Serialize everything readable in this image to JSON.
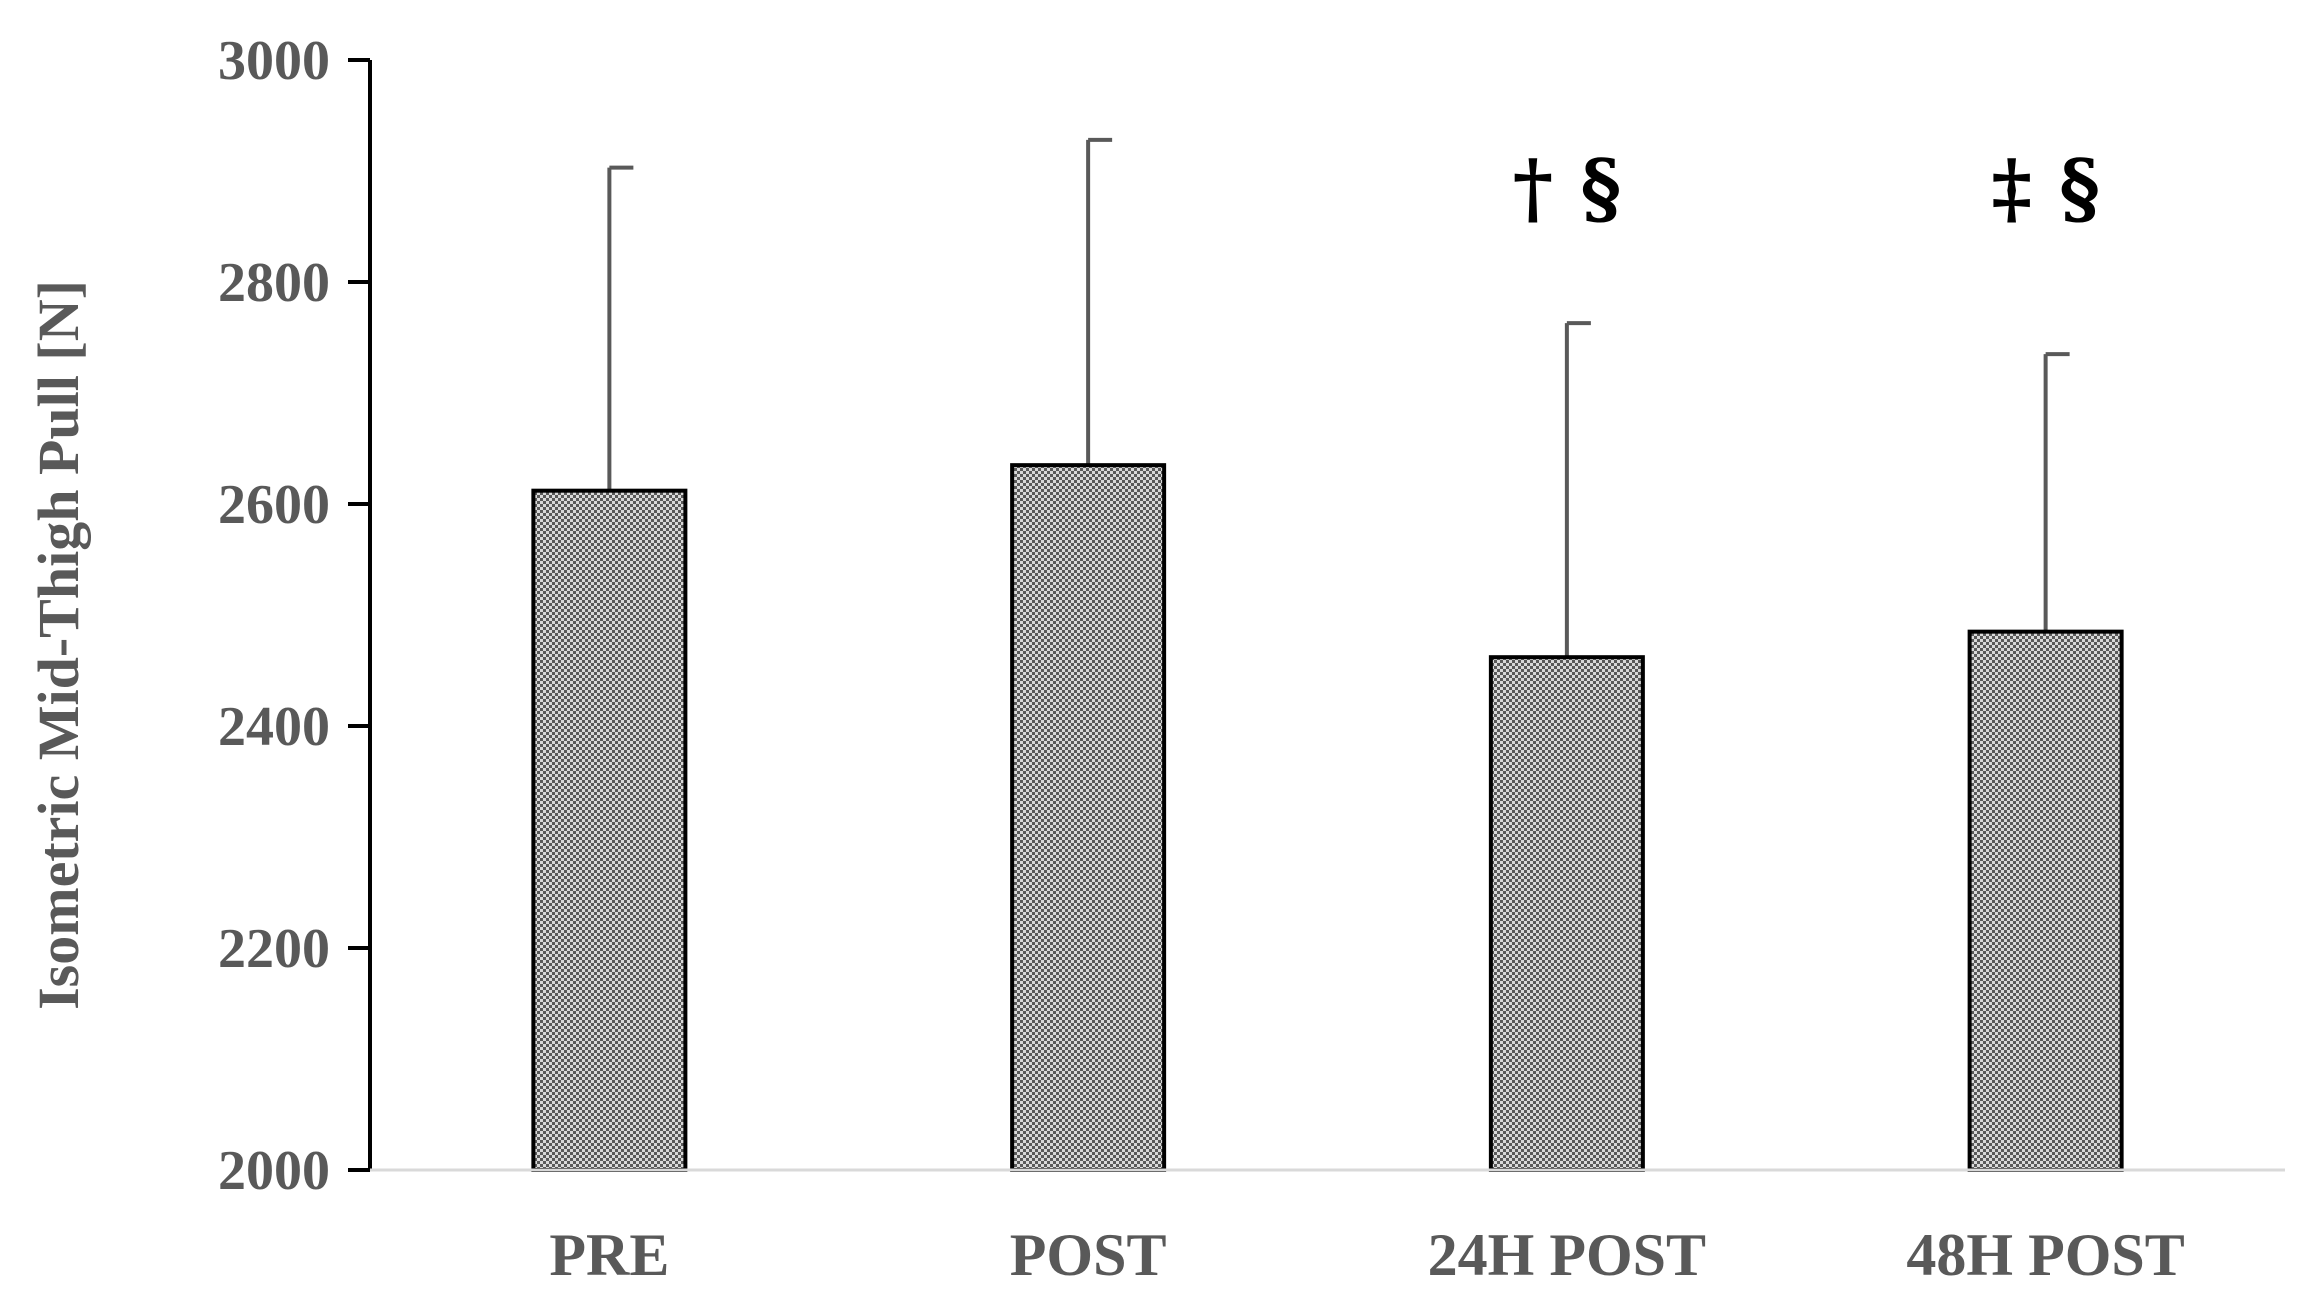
{
  "chart_data": {
    "type": "bar",
    "title": "",
    "xlabel": "",
    "ylabel": "Isometric Mid-Thigh Pull [N]",
    "ylim": [
      2000,
      3000
    ],
    "yticks": [
      2000,
      2200,
      2400,
      2600,
      2800,
      3000
    ],
    "categories": [
      "PRE",
      "POST",
      "24H POST",
      "48H POST"
    ],
    "values": [
      2612,
      2635,
      2462,
      2485
    ],
    "error_upper": [
      2903,
      2928,
      2763,
      2735
    ],
    "annotations": [
      "",
      "",
      "† §",
      "‡ §"
    ],
    "grid": false,
    "legend": "none",
    "colors": {
      "bar_fill_pattern": "#999999",
      "bar_stroke": "#000000",
      "error_bar": "#595959",
      "axis": "#000000",
      "text": "#595959"
    }
  }
}
